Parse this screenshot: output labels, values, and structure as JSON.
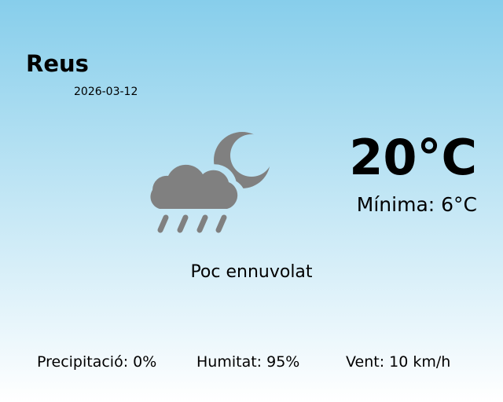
{
  "location": {
    "city": "Reus",
    "date": "2026-03-12"
  },
  "current": {
    "temperature": "20°C",
    "minimum": "Mínima: 6°C",
    "condition": "Poc ennuvolat",
    "icon": "rain-cloud-moon-icon",
    "icon_color": "#808080"
  },
  "stats": {
    "precipitation": "Precipitació: 0%",
    "humidity": "Humitat: 95%",
    "wind": "Vent: 10 km/h"
  },
  "colors": {
    "background_top": "#87ceeb",
    "background_bottom": "#ffffff"
  }
}
